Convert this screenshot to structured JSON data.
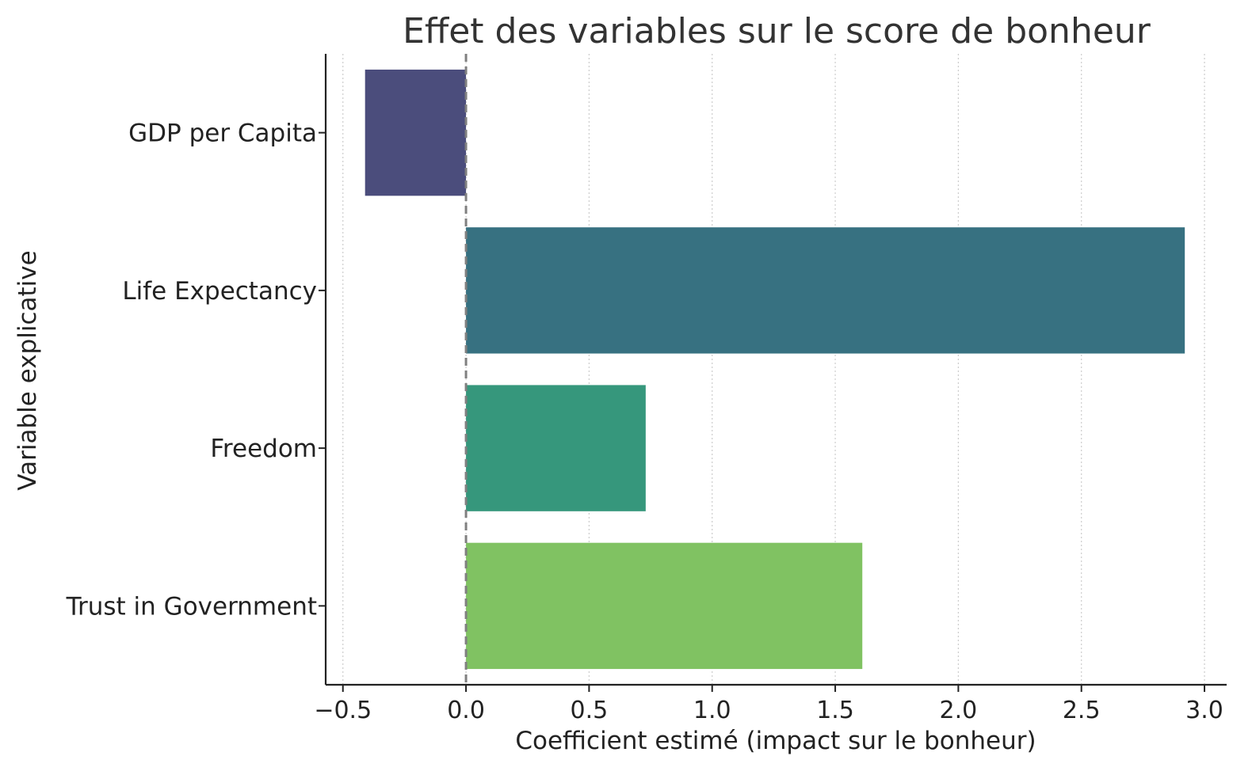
{
  "chart_data": {
    "type": "bar",
    "orientation": "horizontal",
    "title": "Effet des variables sur le score de bonheur",
    "xlabel": "Coefficient estimé (impact sur le bonheur)",
    "ylabel": "Variable explicative",
    "categories": [
      "GDP per Capita",
      "Life Expectancy",
      "Freedom",
      "Trust in Government"
    ],
    "values": [
      -0.41,
      2.92,
      0.73,
      1.61
    ],
    "colors": [
      "#4b4d7c",
      "#377181",
      "#36977c",
      "#80c262"
    ],
    "xlim": [
      -0.57,
      3.09
    ],
    "xticks": [
      -0.5,
      0.0,
      0.5,
      1.0,
      1.5,
      2.0,
      2.5,
      3.0
    ],
    "xtick_labels": [
      "−0.5",
      "0.0",
      "0.5",
      "1.0",
      "1.5",
      "2.0",
      "2.5",
      "3.0"
    ],
    "grid": "x-dotted",
    "reference_line": {
      "x": 0,
      "style": "dashed",
      "color": "#808080"
    }
  }
}
